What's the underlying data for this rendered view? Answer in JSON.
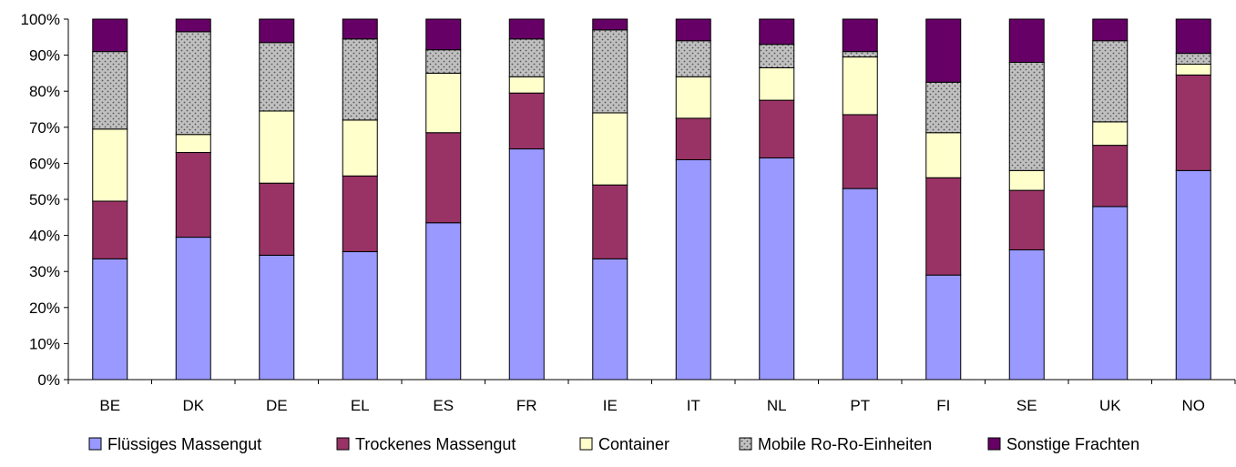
{
  "chart_data": {
    "type": "bar",
    "stacked": true,
    "title": "",
    "xlabel": "",
    "ylabel": "",
    "ylim": [
      0,
      100
    ],
    "y_ticks": [
      "0%",
      "10%",
      "20%",
      "30%",
      "40%",
      "50%",
      "60%",
      "70%",
      "80%",
      "90%",
      "100%"
    ],
    "grid": false,
    "legend_position": "bottom",
    "categories": [
      "BE",
      "DK",
      "DE",
      "EL",
      "ES",
      "FR",
      "IE",
      "IT",
      "NL",
      "PT",
      "FI",
      "SE",
      "UK",
      "NO"
    ],
    "series": [
      {
        "name": "Flüssiges Massengut",
        "color": "#9999ff",
        "pattern": "solid",
        "values": [
          33.5,
          39.5,
          34.5,
          35.5,
          43.5,
          64,
          33.5,
          61,
          61.5,
          53,
          29,
          36,
          48,
          58
        ]
      },
      {
        "name": "Trockenes Massengut",
        "color": "#993366",
        "pattern": "solid",
        "values": [
          16,
          23.5,
          20,
          21,
          25,
          15.5,
          20.5,
          11.5,
          16,
          20.5,
          27,
          16.5,
          17,
          26.5
        ]
      },
      {
        "name": "Container",
        "color": "#ffffcc",
        "pattern": "solid",
        "values": [
          20,
          5,
          20,
          15.5,
          16.5,
          4.5,
          20,
          11.5,
          9,
          16,
          12.5,
          5.5,
          6.5,
          3
        ]
      },
      {
        "name": "Mobile Ro-Ro-Einheiten",
        "color": "#c0c0c0",
        "pattern": "dotted",
        "values": [
          21.5,
          28.5,
          19,
          22.5,
          6.5,
          10.5,
          23,
          10,
          6.5,
          1.5,
          14,
          30,
          22.5,
          3
        ]
      },
      {
        "name": "Sonstige Frachten",
        "color": "#660066",
        "pattern": "solid",
        "values": [
          9,
          3.5,
          6.5,
          5.5,
          8.5,
          5.5,
          3,
          6,
          7,
          9,
          17.5,
          12,
          6,
          9.5
        ]
      }
    ]
  }
}
